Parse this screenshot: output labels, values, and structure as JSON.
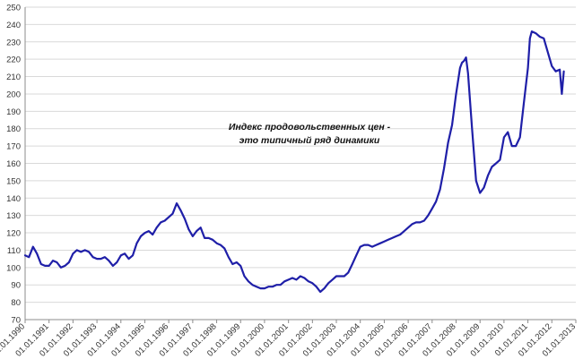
{
  "chart_data": {
    "type": "line",
    "title": "",
    "xlabel": "",
    "ylabel": "",
    "ylim": [
      70,
      250
    ],
    "yticks": [
      70,
      80,
      90,
      100,
      110,
      120,
      130,
      140,
      150,
      160,
      170,
      180,
      190,
      200,
      210,
      220,
      230,
      240,
      250
    ],
    "xlim": [
      "1990-01-01",
      "2013-01-01"
    ],
    "xtick_labels": [
      "01.01.1990",
      "01.01.1991",
      "01.01.1992",
      "01.01.1993",
      "01.01.1994",
      "01.01.1995",
      "01.01.1996",
      "01.01.1997",
      "01.01.1998",
      "01.01.1999",
      "01.01.2000",
      "01.01.2001",
      "01.01.2002",
      "01.01.2003",
      "01.01.2004",
      "01.01.2005",
      "01.01.2006",
      "01.01.2007",
      "01.01.2008",
      "01.01.2009",
      "01.01.2010",
      "01.01.2011",
      "01.01.2012",
      "01.01.2013"
    ],
    "grid": "horizontal",
    "line_color": "#1f1fa8",
    "annotation": [
      "Индекс продовольственных цен -",
      "это типичный ряд динамики"
    ],
    "series": [
      {
        "x": [
          "1990-01-01",
          "1990-03-01",
          "1990-05-01",
          "1990-07-01",
          "1990-09-01",
          "1990-11-01",
          "1991-01-01",
          "1991-03-01",
          "1991-05-01",
          "1991-07-01",
          "1991-09-01",
          "1991-11-01",
          "1992-01-01",
          "1992-03-01",
          "1992-05-01",
          "1992-07-01",
          "1992-09-01",
          "1992-11-01",
          "1993-01-01",
          "1993-03-01",
          "1993-05-01",
          "1993-07-01",
          "1993-09-01",
          "1993-11-01",
          "1994-01-01",
          "1994-03-01",
          "1994-05-01",
          "1994-07-01",
          "1994-09-01",
          "1994-11-01",
          "1995-01-01",
          "1995-03-01",
          "1995-05-01",
          "1995-07-01",
          "1995-09-01",
          "1995-11-01",
          "1996-01-01",
          "1996-03-01",
          "1996-05-01",
          "1996-07-01",
          "1996-09-01",
          "1996-11-01",
          "1997-01-01",
          "1997-03-01",
          "1997-05-01",
          "1997-07-01",
          "1997-09-01",
          "1997-11-01",
          "1998-01-01",
          "1998-03-01",
          "1998-05-01",
          "1998-07-01",
          "1998-09-01",
          "1998-11-01",
          "1999-01-01",
          "1999-03-01",
          "1999-05-01",
          "1999-07-01",
          "1999-09-01",
          "1999-11-01",
          "2000-01-01",
          "2000-03-01",
          "2000-05-01",
          "2000-07-01",
          "2000-09-01",
          "2000-11-01",
          "2001-01-01",
          "2001-03-01",
          "2001-05-01",
          "2001-07-01",
          "2001-09-01",
          "2001-11-01",
          "2002-01-01",
          "2002-03-01",
          "2002-05-01",
          "2002-07-01",
          "2002-09-01",
          "2002-11-01",
          "2003-01-01",
          "2003-03-01",
          "2003-05-01",
          "2003-07-01",
          "2003-09-01",
          "2003-11-01",
          "2004-01-01",
          "2004-03-01",
          "2004-05-01",
          "2004-07-01",
          "2004-09-01",
          "2004-11-01",
          "2005-01-01",
          "2005-03-01",
          "2005-05-01",
          "2005-07-01",
          "2005-09-01",
          "2005-11-01",
          "2006-01-01",
          "2006-03-01",
          "2006-05-01",
          "2006-07-01",
          "2006-09-01",
          "2006-11-01",
          "2007-01-01",
          "2007-03-01",
          "2007-05-01",
          "2007-07-01",
          "2007-09-01",
          "2007-11-01",
          "2008-01-01",
          "2008-03-01",
          "2008-04-01",
          "2008-05-01",
          "2008-06-01",
          "2008-07-01",
          "2008-09-01",
          "2008-11-01",
          "2009-01-01",
          "2009-03-01",
          "2009-05-01",
          "2009-07-01",
          "2009-09-01",
          "2009-11-01",
          "2010-01-01",
          "2010-03-01",
          "2010-05-01",
          "2010-07-01",
          "2010-09-01",
          "2010-11-01",
          "2011-01-01",
          "2011-02-01",
          "2011-03-01",
          "2011-05-01",
          "2011-07-01",
          "2011-09-01",
          "2011-11-01",
          "2012-01-01",
          "2012-03-01",
          "2012-05-01",
          "2012-06-01",
          "2012-07-01"
        ],
        "values": [
          107,
          106,
          112,
          108,
          102,
          101,
          101,
          104,
          103,
          100,
          101,
          103,
          108,
          110,
          109,
          110,
          109,
          106,
          105,
          105,
          106,
          104,
          101,
          103,
          107,
          108,
          105,
          107,
          114,
          118,
          120,
          121,
          119,
          123,
          126,
          127,
          129,
          131,
          137,
          133,
          128,
          122,
          118,
          121,
          123,
          117,
          117,
          116,
          114,
          113,
          111,
          106,
          102,
          103,
          101,
          95,
          92,
          90,
          89,
          88,
          88,
          89,
          89,
          90,
          90,
          92,
          93,
          94,
          93,
          95,
          94,
          92,
          91,
          89,
          86,
          88,
          91,
          93,
          95,
          95,
          95,
          97,
          102,
          107,
          112,
          113,
          113,
          112,
          113,
          114,
          115,
          116,
          117,
          118,
          119,
          121,
          123,
          125,
          126,
          126,
          127,
          130,
          134,
          138,
          145,
          157,
          172,
          182,
          200,
          215,
          218,
          219,
          221,
          212,
          180,
          150,
          143,
          146,
          153,
          158,
          160,
          162,
          175,
          178,
          170,
          170,
          175,
          195,
          215,
          232,
          236,
          235,
          233,
          232,
          224,
          216,
          213,
          214,
          200,
          213
        ]
      }
    ]
  }
}
